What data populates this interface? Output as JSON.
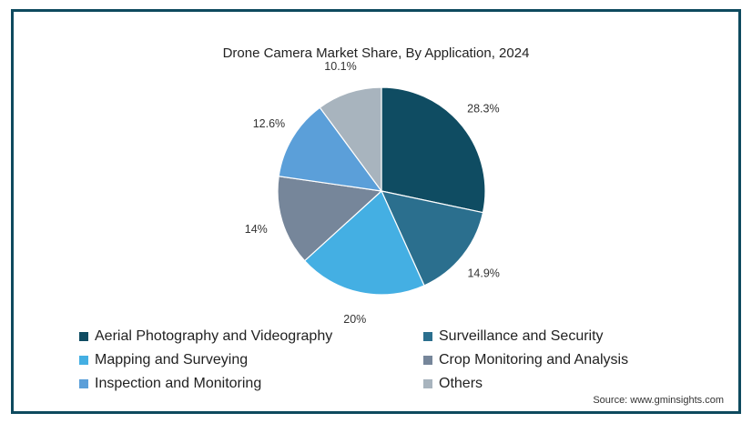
{
  "chart_data": {
    "type": "pie",
    "title": "Drone Camera Market Share, By Application, 2024",
    "slices": [
      {
        "label": "Aerial Photography and Videography",
        "value": 28.3,
        "value_label": "28.3%",
        "color": "#0f4c62"
      },
      {
        "label": "Surveillance and Security",
        "value": 14.9,
        "value_label": "14.9%",
        "color": "#2b6f8e"
      },
      {
        "label": "Mapping and Surveying",
        "value": 20,
        "value_label": "20%",
        "color": "#44afe3"
      },
      {
        "label": "Crop Monitoring and Analysis",
        "value": 14,
        "value_label": "14%",
        "color": "#76869a"
      },
      {
        "label": "Inspection and Monitoring",
        "value": 12.6,
        "value_label": "12.6%",
        "color": "#5b9fd9"
      },
      {
        "label": "Others",
        "value": 10.1,
        "value_label": "10.1%",
        "color": "#a8b4be"
      }
    ],
    "legend_placement": "bottom"
  },
  "source": "Source: www.gminsights.com"
}
